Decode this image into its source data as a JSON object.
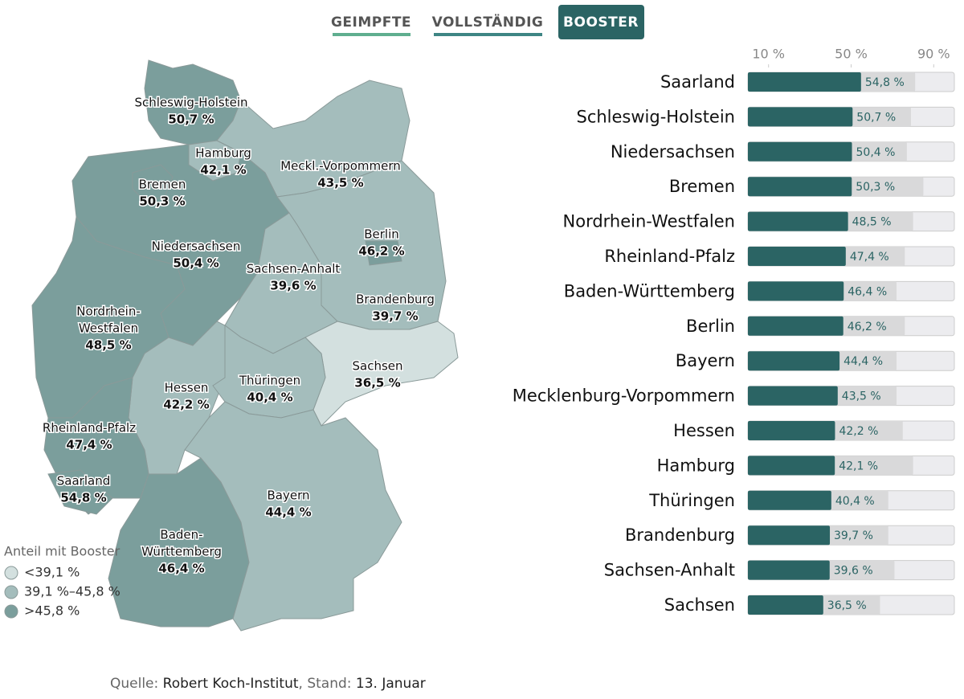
{
  "tabs": [
    "GEIMPFTE",
    "VOLLSTÄNDIG",
    "BOOSTER"
  ],
  "source": {
    "label": "Quelle:",
    "name": "Robert Koch-Institut",
    "stand_label": ", Stand:",
    "date": "13. Januar"
  },
  "chart_data": [
    {
      "type": "choropleth",
      "breaks": [
        39.1,
        45.8
      ],
      "legend": {
        "title": "Anteil mit Booster",
        "items": [
          {
            "label": "<39,1 %",
            "color": "#d3e0df"
          },
          {
            "label": "39,1 %–45,8 %",
            "color": "#a4bdbc"
          },
          {
            "label": ">45,8 %",
            "color": "#7b9e9c"
          }
        ]
      },
      "regions": [
        {
          "name": [
            "Schleswig-Holstein"
          ],
          "value": 50.7,
          "value_label": "50,7 %"
        },
        {
          "name": [
            "Meckl.-Vorpommern"
          ],
          "value": 43.5,
          "value_label": "43,5 %"
        },
        {
          "name": [
            "Niedersachsen"
          ],
          "value": 50.4,
          "value_label": "50,4 %"
        },
        {
          "name": [
            "Brandenburg"
          ],
          "value": 39.7,
          "value_label": "39,7 %"
        },
        {
          "name": [
            "Sachsen-Anhalt"
          ],
          "value": 39.6,
          "value_label": "39,6 %"
        },
        {
          "name": [
            "Sachsen"
          ],
          "value": 36.5,
          "value_label": "36,5 %"
        },
        {
          "name": [
            "Nordrhein-",
            "Westfalen"
          ],
          "value": 48.5,
          "value_label": "48,5 %"
        },
        {
          "name": [
            "Hessen"
          ],
          "value": 42.2,
          "value_label": "42,2 %"
        },
        {
          "name": [
            "Thüringen"
          ],
          "value": 40.4,
          "value_label": "40,4 %"
        },
        {
          "name": [
            "Rheinland-Pfalz"
          ],
          "value": 47.4,
          "value_label": "47,4 %"
        },
        {
          "name": [
            "Baden-",
            "Württemberg"
          ],
          "value": 46.4,
          "value_label": "46,4 %"
        },
        {
          "name": [
            "Bayern"
          ],
          "value": 44.4,
          "value_label": "44,4 %"
        },
        {
          "name": [
            "Saarland"
          ],
          "value": 54.8,
          "value_label": "54,8 %"
        },
        {
          "name": [
            "Hamburg"
          ],
          "value": 42.1,
          "value_label": "42,1 %"
        },
        {
          "name": [
            "Bremen"
          ],
          "value": 50.3,
          "value_label": "50,3 %"
        },
        {
          "name": [
            "Berlin"
          ],
          "value": 46.2,
          "value_label": "46,2 %"
        }
      ]
    },
    {
      "type": "hbar",
      "categories": [
        "Saarland",
        "Schleswig-Holstein",
        "Niedersachsen",
        "Bremen",
        "Nordrhein-Westfalen",
        "Rheinland-Pfalz",
        "Baden-Württemberg",
        "Berlin",
        "Bayern",
        "Mecklenburg-Vorpommern",
        "Hessen",
        "Hamburg",
        "Thüringen",
        "Brandenburg",
        "Sachsen-Anhalt",
        "Sachsen"
      ],
      "series": [
        {
          "color": "#2b6464",
          "values": [
            54.8,
            50.7,
            50.4,
            50.3,
            48.5,
            47.4,
            46.4,
            46.2,
            44.4,
            43.5,
            42.2,
            42.1,
            40.4,
            39.7,
            39.6,
            36.5
          ],
          "value_labels": [
            "54,8 %",
            "50,7 %",
            "50,4 %",
            "50,3 %",
            "48,5 %",
            "47,4 %",
            "46,4 %",
            "46,2 %",
            "44,4 %",
            "43,5 %",
            "42,2 %",
            "42,1 %",
            "40,4 %",
            "39,7 %",
            "39,6 %",
            "36,5 %"
          ]
        },
        {
          "color": "#d9d9da",
          "values": [
            81,
            79,
            77,
            85,
            80,
            76,
            72,
            76,
            72,
            72,
            75,
            80,
            68,
            68,
            71,
            64
          ]
        }
      ],
      "xlim": [
        0,
        100
      ],
      "xticks": [
        {
          "value": 10,
          "label": "10 %"
        },
        {
          "value": 50,
          "label": "50 %"
        },
        {
          "value": 90,
          "label": "90 %"
        }
      ],
      "track_color": "#ececef"
    }
  ]
}
